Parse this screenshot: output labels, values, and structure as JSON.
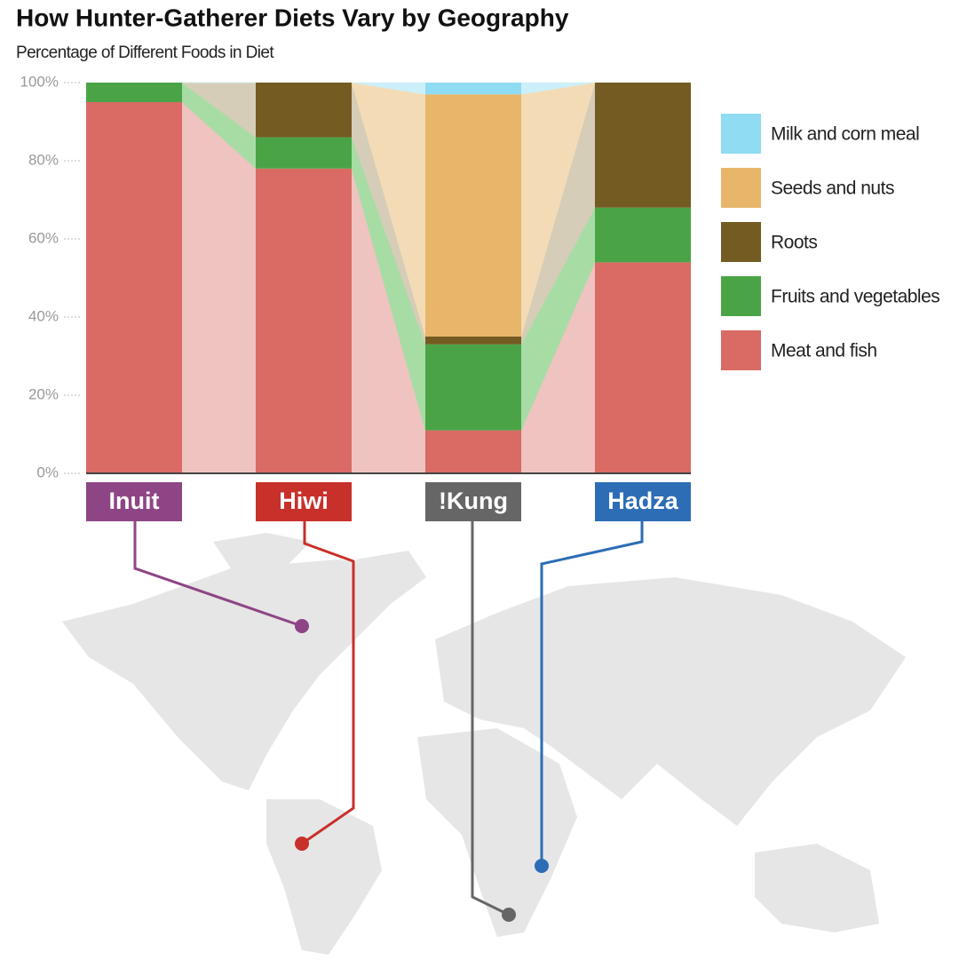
{
  "chart_data": {
    "type": "stacked_bar",
    "title": "How Hunter-Gatherer Diets Vary by Geography",
    "subtitle": "Percentage of Different Foods in Diet",
    "categories": [
      "Inuit",
      "Hiwi",
      "!Kung",
      "Hadza"
    ],
    "category_colors": [
      "#8e4585",
      "#c8302a",
      "#666666",
      "#2d6db5"
    ],
    "series": [
      {
        "name": "Meat and fish",
        "color": "#d96b64",
        "light": "#efc3bf",
        "values": [
          95,
          78,
          11,
          54
        ]
      },
      {
        "name": "Fruits and vegetables",
        "color": "#4aa446",
        "light": "#a8dca5",
        "values": [
          5,
          8,
          22,
          14
        ]
      },
      {
        "name": "Roots",
        "color": "#735b22",
        "light": "#d5cdb8",
        "values": [
          0,
          14,
          2,
          32
        ]
      },
      {
        "name": "Seeds and nuts",
        "color": "#e8b66a",
        "light": "#f3dcb5",
        "values": [
          0,
          0,
          62,
          0
        ]
      },
      {
        "name": "Milk and corn meal",
        "color": "#8fdcf3",
        "light": "#cdeffa",
        "values": [
          0,
          0,
          3,
          0
        ]
      }
    ],
    "ylim": [
      0,
      100
    ],
    "yticks": [
      {
        "value": 0,
        "label": "0%"
      },
      {
        "value": 20,
        "label": "20%"
      },
      {
        "value": 40,
        "label": "40%"
      },
      {
        "value": 60,
        "label": "60%"
      },
      {
        "value": 80,
        "label": "80%"
      },
      {
        "value": 100,
        "label": "100%"
      }
    ]
  }
}
